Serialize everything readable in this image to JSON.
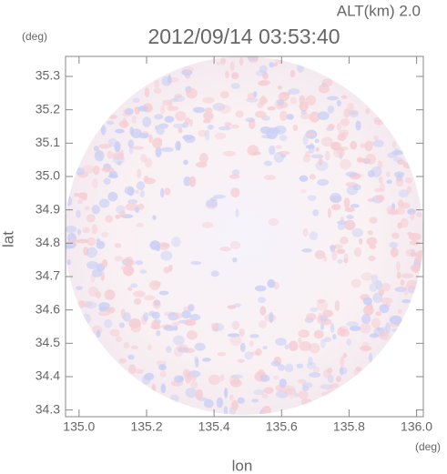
{
  "chart_data": {
    "type": "field",
    "title": "2012/09/14 03:53:40",
    "subtitle": "ALT(km) 2.0",
    "x_label": "lon",
    "y_label": "lat",
    "x_unit": "(deg)",
    "y_unit": "(deg)",
    "xlim": [
      134.96,
      136.02
    ],
    "ylim": [
      34.28,
      35.36
    ],
    "xticks": [
      {
        "value": 135,
        "label": "135.0"
      },
      135.2,
      135.4,
      135.6,
      135.8,
      {
        "value": 136,
        "label": "136.0"
      }
    ],
    "yticks": [
      34.3,
      34.4,
      34.5,
      34.6,
      34.7,
      34.8,
      34.9,
      {
        "value": 35,
        "label": "35.0"
      },
      35.1,
      35.2,
      35.3
    ]
  }
}
